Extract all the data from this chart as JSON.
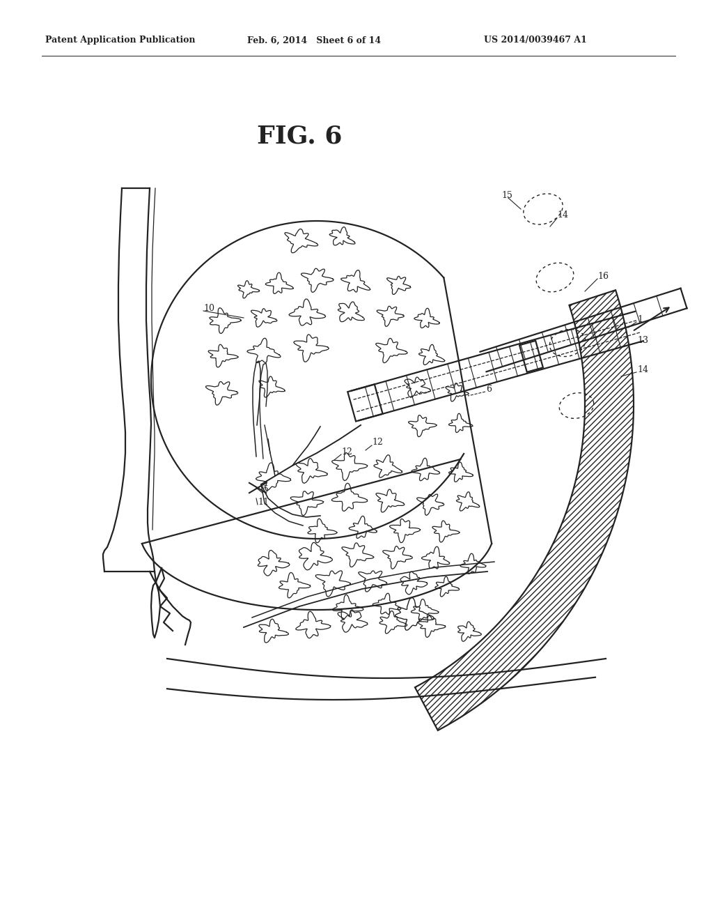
{
  "bg_color": "#ffffff",
  "line_color": "#222222",
  "header_left": "Patent Application Publication",
  "header_mid": "Feb. 6, 2014   Sheet 6 of 14",
  "header_right": "US 2014/0039467 A1",
  "fig_label": "FIG. 6",
  "header_fontsize": 9,
  "fig_label_fontsize": 26,
  "label_fontsize": 9
}
